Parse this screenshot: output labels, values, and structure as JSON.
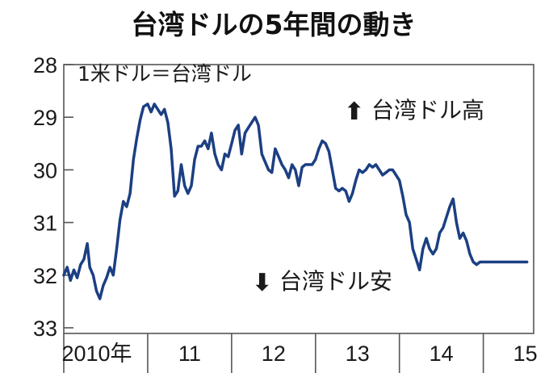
{
  "chart_data": {
    "type": "line",
    "title": "台湾ドルの5年間の動き",
    "unit_note": "1米ドル＝台湾ドル",
    "annotation_up": "台湾ドル高",
    "annotation_down": "台湾ドル安",
    "arrow_up": "⬆",
    "arrow_down": "⬇",
    "y_inverted": true,
    "ylim": [
      28,
      33
    ],
    "yticks": [
      "28",
      "29",
      "30",
      "31",
      "32",
      "33"
    ],
    "xlim": [
      2010.0,
      2015.6
    ],
    "xticks": [
      "2010年",
      "11",
      "12",
      "13",
      "14",
      "15"
    ],
    "grid": false,
    "line_color": "#1c3f83",
    "series": [
      {
        "x": [
          2010.0,
          2010.04,
          2010.08,
          2010.12,
          2010.16,
          2010.2,
          2010.24,
          2010.28,
          2010.31,
          2010.35,
          2010.39,
          2010.43,
          2010.47,
          2010.51,
          2010.55,
          2010.59,
          2010.63,
          2010.67,
          2010.71,
          2010.75,
          2010.79,
          2010.83,
          2010.87,
          2010.91,
          2010.95,
          2011.0,
          2011.04,
          2011.08,
          2011.12,
          2011.16,
          2011.2,
          2011.24,
          2011.28,
          2011.32,
          2011.36,
          2011.4,
          2011.44,
          2011.48,
          2011.52,
          2011.56,
          2011.6,
          2011.64,
          2011.68,
          2011.72,
          2011.76,
          2011.8,
          2011.84,
          2011.88,
          2011.92,
          2011.96,
          2012.0,
          2012.04,
          2012.08,
          2012.12,
          2012.16,
          2012.2,
          2012.24,
          2012.28,
          2012.32,
          2012.36,
          2012.4,
          2012.44,
          2012.48,
          2012.52,
          2012.56,
          2012.6,
          2012.64,
          2012.68,
          2012.72,
          2012.76,
          2012.8,
          2012.84,
          2012.88,
          2012.92,
          2012.96,
          2013.0,
          2013.04,
          2013.08,
          2013.12,
          2013.16,
          2013.2,
          2013.24,
          2013.28,
          2013.32,
          2013.36,
          2013.4,
          2013.44,
          2013.48,
          2013.52,
          2013.56,
          2013.6,
          2013.64,
          2013.68,
          2013.72,
          2013.76,
          2013.8,
          2013.84,
          2013.88,
          2013.92,
          2013.96,
          2014.0,
          2014.04,
          2014.08,
          2014.12,
          2014.16,
          2014.2,
          2014.24,
          2014.28,
          2014.32,
          2014.36,
          2014.4,
          2014.44,
          2014.48,
          2014.52,
          2014.56,
          2014.6,
          2014.64,
          2014.68,
          2014.72,
          2014.76,
          2014.8,
          2014.84,
          2014.88,
          2014.92,
          2014.96,
          2015.0,
          2015.04,
          2015.08,
          2015.12,
          2015.16,
          2015.2,
          2015.24,
          2015.28,
          2015.32,
          2015.36,
          2015.4,
          2015.44,
          2015.48,
          2015.52
        ],
        "y": [
          32.0,
          31.85,
          32.1,
          31.9,
          32.05,
          31.8,
          31.7,
          31.4,
          31.85,
          32.0,
          32.3,
          32.45,
          32.2,
          32.05,
          31.85,
          32.0,
          31.5,
          30.95,
          30.6,
          30.7,
          30.45,
          29.8,
          29.4,
          29.05,
          28.8,
          28.75,
          28.9,
          28.75,
          28.85,
          28.95,
          28.85,
          29.1,
          29.6,
          30.5,
          30.4,
          29.9,
          30.3,
          30.45,
          30.3,
          29.8,
          29.55,
          29.55,
          29.45,
          29.6,
          29.3,
          29.7,
          29.9,
          30.0,
          29.7,
          29.75,
          29.5,
          29.25,
          29.15,
          29.7,
          29.3,
          29.2,
          29.1,
          29.0,
          29.15,
          29.7,
          29.85,
          30.0,
          30.05,
          29.6,
          29.75,
          29.9,
          30.0,
          30.15,
          29.9,
          30.0,
          30.3,
          29.95,
          29.9,
          29.9,
          29.9,
          29.8,
          29.6,
          29.45,
          29.5,
          29.65,
          30.0,
          30.35,
          30.4,
          30.35,
          30.4,
          30.6,
          30.45,
          30.2,
          30.0,
          30.05,
          30.0,
          29.9,
          29.95,
          29.9,
          30.0,
          30.1,
          30.05,
          30.0,
          30.0,
          30.1,
          30.2,
          30.5,
          30.85,
          31.0,
          31.5,
          31.7,
          31.9,
          31.5,
          31.3,
          31.5,
          31.6,
          31.5,
          31.2,
          31.1,
          30.9,
          30.7,
          30.55,
          31.0,
          31.3,
          31.2,
          31.35,
          31.6,
          31.75,
          31.8,
          31.75,
          31.75,
          31.75,
          31.75,
          31.75,
          31.75,
          31.75,
          31.75,
          31.75,
          31.75,
          31.75,
          31.75,
          31.75,
          31.75,
          31.75
        ]
      }
    ]
  }
}
